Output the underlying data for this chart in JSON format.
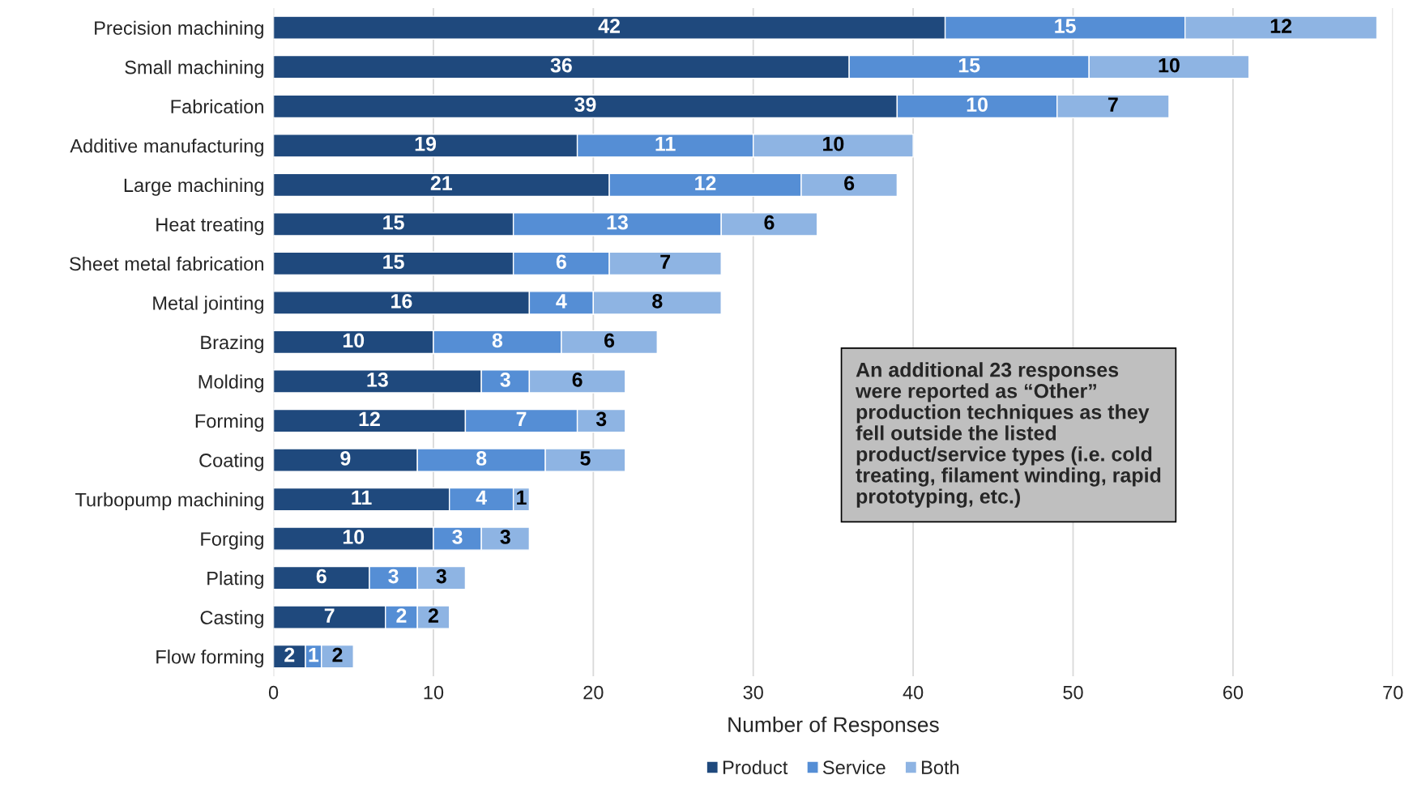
{
  "chart_data": {
    "type": "bar",
    "orientation": "horizontal",
    "stacked": true,
    "categories": [
      "Precision machining",
      "Small machining",
      "Fabrication",
      "Additive manufacturing",
      "Large machining",
      "Heat treating",
      "Sheet metal fabrication",
      "Metal jointing",
      "Brazing",
      "Molding",
      "Forming",
      "Coating",
      "Turbopump machining",
      "Forging",
      "Plating",
      "Casting",
      "Flow forming"
    ],
    "series": [
      {
        "name": "Product",
        "color": "#1f497d",
        "values": [
          42,
          36,
          39,
          19,
          21,
          15,
          15,
          16,
          10,
          13,
          12,
          9,
          11,
          10,
          6,
          7,
          2
        ]
      },
      {
        "name": "Service",
        "color": "#558ed5",
        "values": [
          15,
          15,
          10,
          11,
          12,
          13,
          6,
          4,
          8,
          3,
          7,
          8,
          4,
          3,
          3,
          2,
          1
        ]
      },
      {
        "name": "Both",
        "color": "#8eb4e3",
        "values": [
          12,
          10,
          7,
          10,
          6,
          6,
          7,
          8,
          6,
          6,
          3,
          5,
          1,
          3,
          3,
          2,
          2
        ]
      }
    ],
    "xlabel": "Number of Responses",
    "xlim": [
      0,
      70
    ],
    "xticks": [
      0,
      10,
      20,
      30,
      40,
      50,
      60,
      70
    ],
    "grid": "x",
    "legend": "bottom",
    "data_labels": true,
    "annotations": [
      "An additional 23 responses\nwere reported as “Other”\nproduction techniques as they\nfell outside the listed\nproduct/service types (i.e. cold\ntreating, filament winding, rapid\nprototyping, etc.)"
    ]
  }
}
